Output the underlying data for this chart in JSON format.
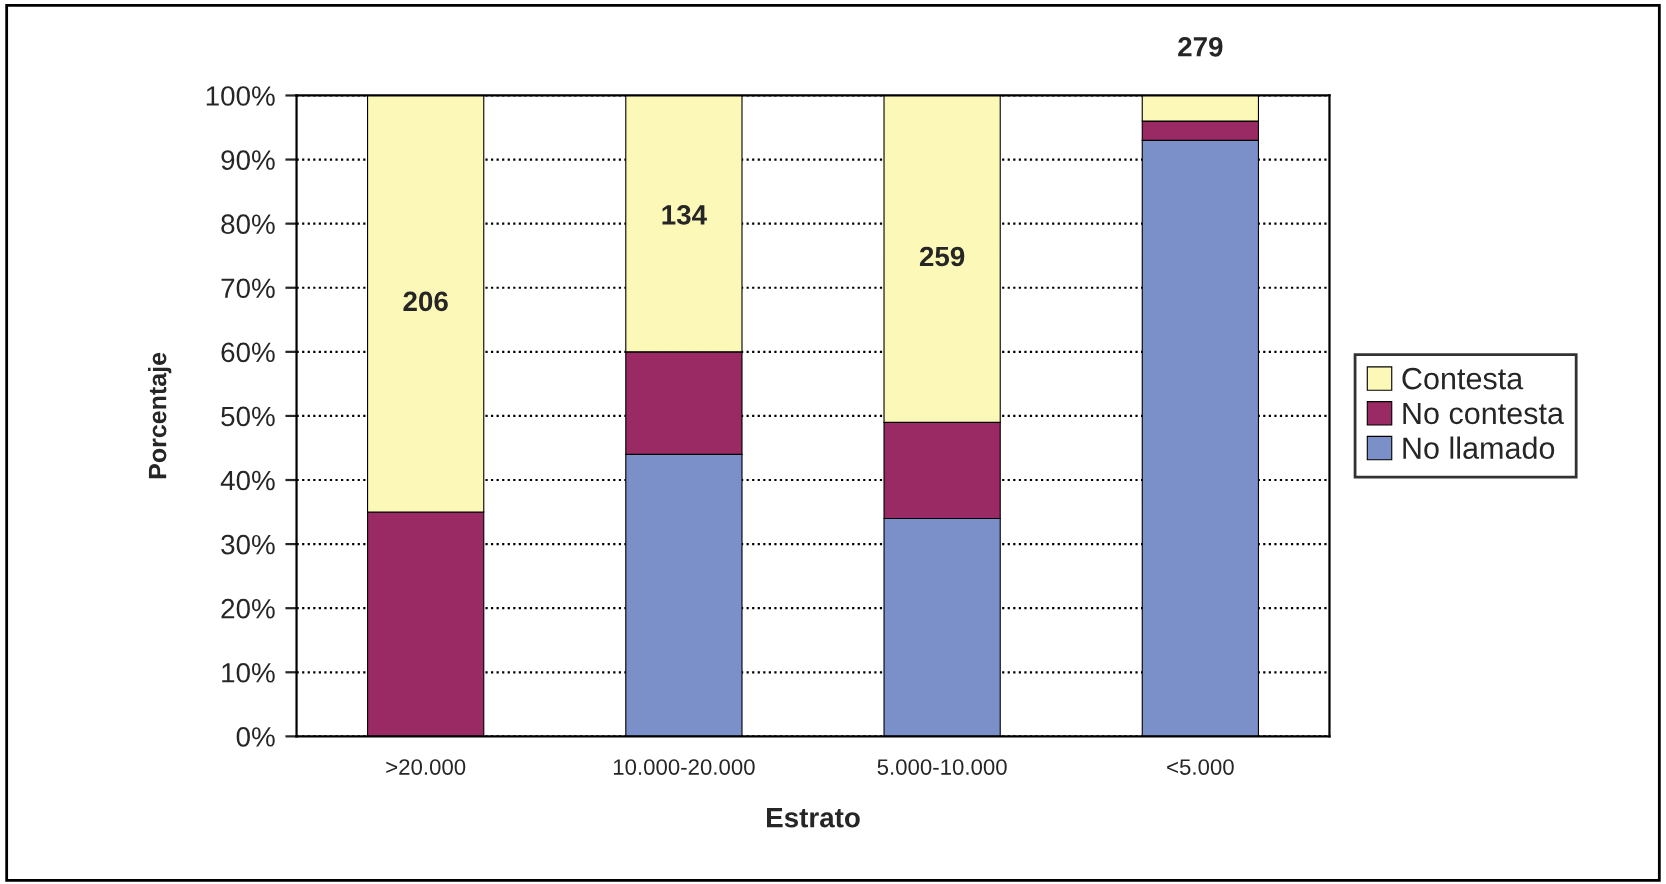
{
  "chart_data": {
    "type": "bar",
    "stacked": true,
    "xlabel": "Estrato",
    "ylabel": "Porcentaje",
    "categories": [
      ">20.000",
      "10.000-20.000",
      "5.000-10.000",
      "<5.000"
    ],
    "series": [
      {
        "name": "No llamado",
        "color": "#7b8fc8",
        "values": [
          0,
          44,
          34,
          93
        ]
      },
      {
        "name": "No contesta",
        "color": "#992a63",
        "values": [
          35,
          16,
          15,
          3
        ]
      },
      {
        "name": "Contesta",
        "color": "#fbf8b8",
        "values": [
          65,
          40,
          51,
          4
        ]
      }
    ],
    "ylim": [
      0,
      100
    ],
    "yticks": [
      {
        "value": 0,
        "label": "0%"
      },
      {
        "value": 10,
        "label": "10%"
      },
      {
        "value": 20,
        "label": "20%"
      },
      {
        "value": 30,
        "label": "30%"
      },
      {
        "value": 40,
        "label": "40%"
      },
      {
        "value": 50,
        "label": "50%"
      },
      {
        "value": 60,
        "label": "60%"
      },
      {
        "value": 70,
        "label": "70%"
      },
      {
        "value": 80,
        "label": "80%"
      },
      {
        "value": 90,
        "label": "90%"
      },
      {
        "value": 100,
        "label": "100%"
      }
    ],
    "grid": "y",
    "legend": "right",
    "annotations": [
      "206",
      "134",
      "259",
      "279"
    ]
  }
}
